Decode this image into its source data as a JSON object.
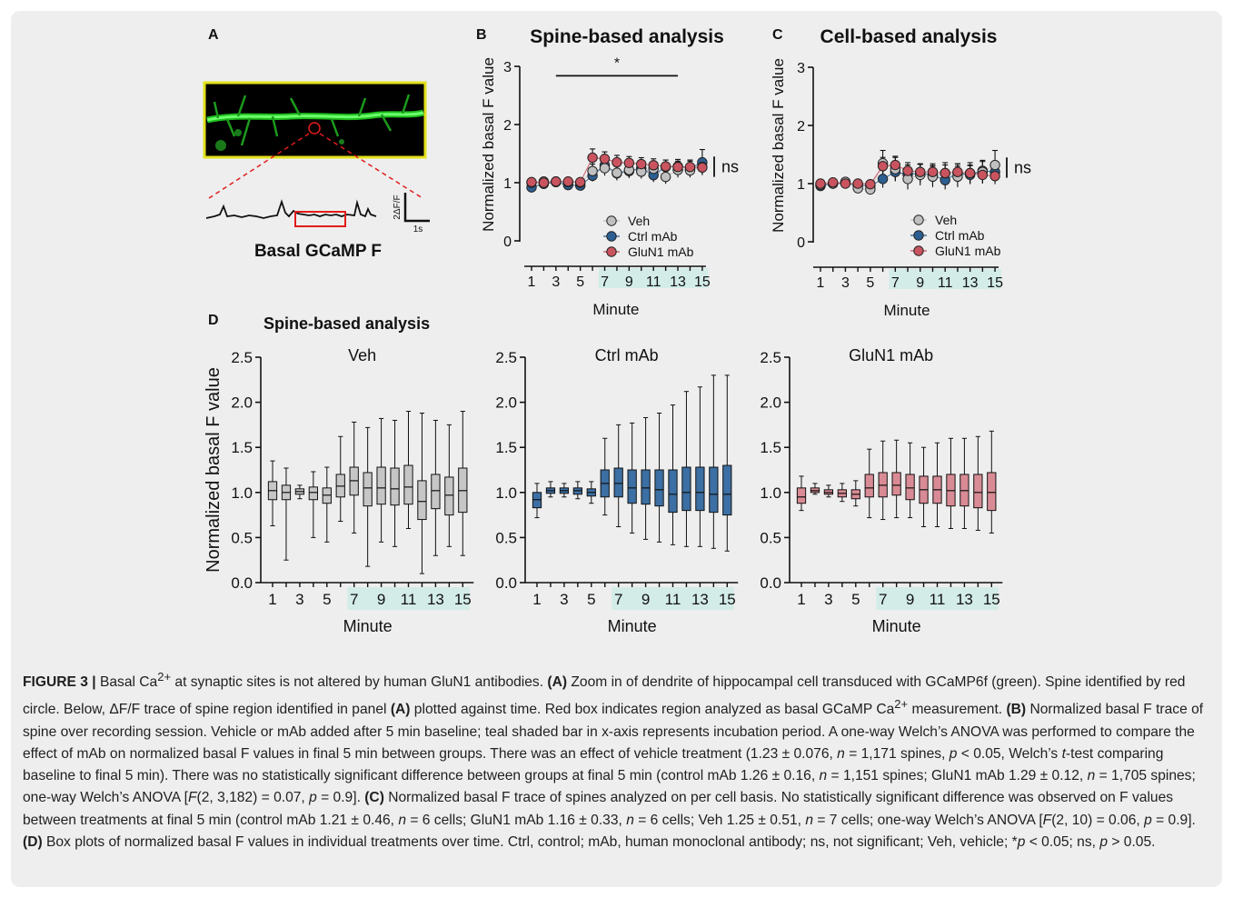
{
  "panel_a": {
    "letter": "A",
    "label": "Basal GCaMP F",
    "scale_y": "2ΔF/F",
    "scale_x": "1s"
  },
  "panel_b": {
    "letter": "B",
    "title": "Spine-based analysis",
    "ylabel": "Normalized basal F value",
    "xlabel": "Minute",
    "sig_star": "*",
    "ns": "ns",
    "legend": [
      "Veh",
      "Ctrl mAb",
      "GluN1 mAb"
    ]
  },
  "panel_c": {
    "letter": "C",
    "title": "Cell-based analysis",
    "ylabel": "Normalized basal F value",
    "xlabel": "Minute",
    "ns": "ns",
    "legend": [
      "Veh",
      "Ctrl mAb",
      "GluN1 mAb"
    ]
  },
  "panel_d": {
    "letter": "D",
    "title": "Spine-based analysis",
    "ylabel": "Normalized basal F value",
    "xlabel": "Minute",
    "subtitles": [
      "Veh",
      "Ctrl mAb",
      "GluN1 mAb"
    ]
  },
  "colors": {
    "veh": "#c0c0c0",
    "ctrl": "#2c5f91",
    "glun1": "#c9545f",
    "veh_box": "#c6c6c6",
    "ctrl_box": "#3c6fa3",
    "glun1_box": "#d98b95",
    "teal": "#d3ece8"
  },
  "chart_data": [
    {
      "type": "line",
      "panel": "B",
      "title": "Spine-based analysis",
      "xlabel": "Minute",
      "ylabel": "Normalized basal F value",
      "x": [
        1,
        2,
        3,
        4,
        5,
        6,
        7,
        8,
        9,
        10,
        11,
        12,
        13,
        14,
        15
      ],
      "xticks": [
        1,
        3,
        5,
        7,
        9,
        11,
        13,
        15
      ],
      "yticks": [
        0,
        1,
        2,
        3
      ],
      "ylim": [
        0,
        3
      ],
      "shaded_x": [
        6.5,
        15.5
      ],
      "series": [
        {
          "name": "Veh",
          "values": [
            1.0,
            1.02,
            1.02,
            1.01,
            1.0,
            1.2,
            1.25,
            1.17,
            1.22,
            1.19,
            1.24,
            1.1,
            1.22,
            1.21,
            1.27
          ],
          "err": [
            0.04,
            0.04,
            0.04,
            0.04,
            0.04,
            0.12,
            0.13,
            0.12,
            0.13,
            0.12,
            0.13,
            0.12,
            0.13,
            0.12,
            0.13
          ]
        },
        {
          "name": "Ctrl mAb",
          "values": [
            0.92,
            0.98,
            1.01,
            0.96,
            0.95,
            1.12,
            1.3,
            1.16,
            1.2,
            1.25,
            1.13,
            1.27,
            1.28,
            1.25,
            1.35
          ],
          "err": [
            0.04,
            0.04,
            0.04,
            0.04,
            0.04,
            0.1,
            0.12,
            0.12,
            0.12,
            0.12,
            0.12,
            0.12,
            0.12,
            0.14,
            0.22
          ]
        },
        {
          "name": "GluN1 mAb",
          "values": [
            1.01,
            1.0,
            1.02,
            1.02,
            1.01,
            1.43,
            1.41,
            1.35,
            1.34,
            1.32,
            1.3,
            1.28,
            1.27,
            1.27,
            1.26
          ],
          "err": [
            0.04,
            0.04,
            0.04,
            0.04,
            0.04,
            0.15,
            0.12,
            0.12,
            0.11,
            0.11,
            0.11,
            0.11,
            0.1,
            0.1,
            0.1
          ]
        }
      ],
      "annotation": {
        "star": "*",
        "from_x": 3,
        "to_x": 13,
        "y": 2.9
      },
      "ns": "ns"
    },
    {
      "type": "line",
      "panel": "C",
      "title": "Cell-based analysis",
      "xlabel": "Minute",
      "ylabel": "Normalized basal F value",
      "x": [
        1,
        2,
        3,
        4,
        5,
        6,
        7,
        8,
        9,
        10,
        11,
        12,
        13,
        14,
        15
      ],
      "xticks": [
        1,
        3,
        5,
        7,
        9,
        11,
        13,
        15
      ],
      "yticks": [
        0,
        1,
        2,
        3
      ],
      "ylim": [
        0,
        3
      ],
      "shaded_x": [
        6.5,
        15.5
      ],
      "series": [
        {
          "name": "Veh",
          "values": [
            0.98,
            1.0,
            1.03,
            0.92,
            0.9,
            1.35,
            1.25,
            1.08,
            1.15,
            1.12,
            1.18,
            1.12,
            1.18,
            1.2,
            1.32
          ],
          "err": [
            0.05,
            0.05,
            0.05,
            0.06,
            0.06,
            0.22,
            0.2,
            0.18,
            0.18,
            0.18,
            0.18,
            0.18,
            0.18,
            0.2,
            0.25
          ]
        },
        {
          "name": "Ctrl mAb",
          "values": [
            0.96,
            1.0,
            1.01,
            0.97,
            0.96,
            1.08,
            1.2,
            1.16,
            1.18,
            1.15,
            1.06,
            1.18,
            1.15,
            1.22,
            1.2
          ],
          "err": [
            0.05,
            0.05,
            0.05,
            0.05,
            0.05,
            0.15,
            0.16,
            0.16,
            0.16,
            0.16,
            0.16,
            0.16,
            0.16,
            0.16,
            0.16
          ]
        },
        {
          "name": "GluN1 mAb",
          "values": [
            1.0,
            1.02,
            1.0,
            1.0,
            0.99,
            1.3,
            1.32,
            1.22,
            1.2,
            1.2,
            1.18,
            1.2,
            1.18,
            1.15,
            1.13
          ],
          "err": [
            0.05,
            0.05,
            0.05,
            0.05,
            0.05,
            0.15,
            0.15,
            0.14,
            0.14,
            0.14,
            0.14,
            0.14,
            0.14,
            0.14,
            0.14
          ]
        }
      ],
      "ns": "ns"
    },
    {
      "type": "box",
      "panel": "D",
      "title": "Veh",
      "xlabel": "Minute",
      "ylabel": "Normalized basal F value",
      "x": [
        1,
        2,
        3,
        4,
        5,
        6,
        7,
        8,
        9,
        10,
        11,
        12,
        13,
        14,
        15
      ],
      "xticks": [
        1,
        3,
        5,
        7,
        9,
        11,
        13,
        15
      ],
      "yticks": [
        0.0,
        0.5,
        1.0,
        1.5,
        2.0,
        2.5
      ],
      "ylim": [
        0,
        2.5
      ],
      "shaded_x": [
        6.5,
        15.5
      ],
      "boxes": [
        [
          0.63,
          0.92,
          1.02,
          1.12,
          1.35
        ],
        [
          0.25,
          0.92,
          1.0,
          1.08,
          1.27
        ],
        [
          0.93,
          0.98,
          1.01,
          1.04,
          1.08
        ],
        [
          0.5,
          0.92,
          1.0,
          1.06,
          1.23
        ],
        [
          0.45,
          0.88,
          0.97,
          1.05,
          1.28
        ],
        [
          0.68,
          0.95,
          1.07,
          1.2,
          1.62
        ],
        [
          0.55,
          0.97,
          1.13,
          1.28,
          1.78
        ],
        [
          0.18,
          0.85,
          1.05,
          1.22,
          1.72
        ],
        [
          0.45,
          0.87,
          1.05,
          1.28,
          1.82
        ],
        [
          0.4,
          0.86,
          1.04,
          1.27,
          1.8
        ],
        [
          0.6,
          0.87,
          1.06,
          1.3,
          1.9
        ],
        [
          0.1,
          0.7,
          0.9,
          1.13,
          1.88
        ],
        [
          0.3,
          0.82,
          1.02,
          1.2,
          1.8
        ],
        [
          0.4,
          0.75,
          0.97,
          1.17,
          1.75
        ],
        [
          0.3,
          0.78,
          1.02,
          1.27,
          1.9
        ]
      ]
    },
    {
      "type": "box",
      "panel": "D",
      "title": "Ctrl mAb",
      "xlabel": "Minute",
      "x": [
        1,
        2,
        3,
        4,
        5,
        6,
        7,
        8,
        9,
        10,
        11,
        12,
        13,
        14,
        15
      ],
      "xticks": [
        1,
        3,
        5,
        7,
        9,
        11,
        13,
        15
      ],
      "yticks": [
        0.0,
        0.5,
        1.0,
        1.5,
        2.0,
        2.5
      ],
      "ylim": [
        0,
        2.5
      ],
      "shaded_x": [
        6.5,
        15.5
      ],
      "boxes": [
        [
          0.72,
          0.83,
          0.92,
          1.0,
          1.1
        ],
        [
          0.95,
          0.99,
          1.02,
          1.05,
          1.12
        ],
        [
          0.95,
          0.99,
          1.02,
          1.05,
          1.1
        ],
        [
          0.93,
          0.98,
          1.02,
          1.05,
          1.12
        ],
        [
          0.88,
          0.96,
          1.0,
          1.04,
          1.12
        ],
        [
          0.75,
          0.95,
          1.1,
          1.25,
          1.6
        ],
        [
          0.62,
          0.95,
          1.1,
          1.27,
          1.75
        ],
        [
          0.55,
          0.88,
          1.05,
          1.25,
          1.77
        ],
        [
          0.48,
          0.87,
          1.05,
          1.25,
          1.83
        ],
        [
          0.45,
          0.85,
          1.03,
          1.25,
          1.88
        ],
        [
          0.42,
          0.78,
          0.98,
          1.25,
          1.97
        ],
        [
          0.4,
          0.8,
          1.0,
          1.28,
          2.12
        ],
        [
          0.4,
          0.8,
          1.0,
          1.28,
          2.17
        ],
        [
          0.38,
          0.78,
          0.98,
          1.28,
          2.3
        ],
        [
          0.35,
          0.75,
          0.98,
          1.3,
          2.3
        ]
      ]
    },
    {
      "type": "box",
      "panel": "D",
      "title": "GluN1 mAb",
      "xlabel": "Minute",
      "x": [
        1,
        2,
        3,
        4,
        5,
        6,
        7,
        8,
        9,
        10,
        11,
        12,
        13,
        14,
        15
      ],
      "xticks": [
        1,
        3,
        5,
        7,
        9,
        11,
        13,
        15
      ],
      "yticks": [
        0.0,
        0.5,
        1.0,
        1.5,
        2.0,
        2.5
      ],
      "ylim": [
        0,
        2.5
      ],
      "shaded_x": [
        6.5,
        15.5
      ],
      "boxes": [
        [
          0.8,
          0.88,
          0.95,
          1.05,
          1.18
        ],
        [
          0.98,
          1.0,
          1.02,
          1.05,
          1.1
        ],
        [
          0.95,
          0.98,
          1.0,
          1.03,
          1.08
        ],
        [
          0.9,
          0.95,
          0.99,
          1.03,
          1.1
        ],
        [
          0.85,
          0.93,
          0.98,
          1.03,
          1.13
        ],
        [
          0.72,
          0.95,
          1.05,
          1.2,
          1.48
        ],
        [
          0.7,
          0.95,
          1.08,
          1.22,
          1.57
        ],
        [
          0.72,
          0.97,
          1.08,
          1.22,
          1.58
        ],
        [
          0.72,
          0.92,
          1.05,
          1.2,
          1.55
        ],
        [
          0.62,
          0.88,
          1.03,
          1.18,
          1.5
        ],
        [
          0.62,
          0.88,
          1.03,
          1.18,
          1.55
        ],
        [
          0.6,
          0.85,
          1.02,
          1.2,
          1.6
        ],
        [
          0.6,
          0.85,
          1.02,
          1.2,
          1.6
        ],
        [
          0.58,
          0.83,
          1.0,
          1.2,
          1.62
        ],
        [
          0.55,
          0.8,
          1.0,
          1.22,
          1.68
        ]
      ]
    }
  ],
  "caption": {
    "fig_label": "FIGURE 3 |",
    "intro": " Basal Ca",
    "intro_sup": "2+",
    "intro_rest": " at synaptic sites is not altered by human GluN1 antibodies. ",
    "a_label": "(A)",
    "a_text": " Zoom in of dendrite of hippocampal cell transduced with GCaMP6f (green). Spine identified by red circle. Below, ΔF/F trace of spine region identified in panel ",
    "a_ref": "(A)",
    "a_text2": " plotted against time. Red box indicates region analyzed as basal GCaMP Ca",
    "a_sup": "2+",
    "a_text3": " measurement. ",
    "b_label": "(B)",
    "b_text": " Normalized basal F trace of spine over recording session. Vehicle or mAb added after 5 min baseline; teal shaded bar in x-axis represents incubation period. A one-way Welch’s ANOVA was performed to compare the effect of mAb on normalized basal F values in final 5 min between groups. There was an effect of vehicle treatment (1.23 ± 0.076, ",
    "b_n1": "n",
    "b_text2": " = 1,171 spines, ",
    "b_p1": "p",
    "b_text3": " < 0.05, Welch’s ",
    "b_t": "t",
    "b_text4": "-test comparing baseline to final 5 min). There was no statistically significant difference between groups at final 5 min (control mAb 1.26 ± 0.16, ",
    "b_n2": "n",
    "b_text5": " = 1,151 spines; GluN1 mAb 1.29 ± 0.12, ",
    "b_n3": "n",
    "b_text6": " = 1,705 spines; one-way Welch’s ANOVA [",
    "b_F": "F",
    "b_text7": "(2, 3,182) = 0.07, ",
    "b_p2": "p",
    "b_text8": " = 0.9]. ",
    "c_label": "(C)",
    "c_text": " Normalized basal F trace of spines analyzed on per cell basis. No statistically significant difference was observed on F values between treatments at final 5 min (control mAb 1.21 ± 0.46, ",
    "c_n1": "n",
    "c_text2": " = 6 cells; GluN1 mAb 1.16 ± 0.33, ",
    "c_n2": "n",
    "c_text3": " = 6 cells; Veh 1.25 ± 0.51, ",
    "c_n3": "n",
    "c_text4": " = 7 cells; one-way Welch’s ANOVA [",
    "c_F": "F",
    "c_text5": "(2, 10) = 0.06, ",
    "c_p": "p",
    "c_text6": " = 0.9]. ",
    "d_label": "(D)",
    "d_text": " Box plots of normalized basal F values in individual treatments over time. Ctrl, control; mAb, human monoclonal antibody; ns, not significant; Veh, vehicle; *",
    "d_p1": "p",
    "d_text2": " < 0.05; ns, ",
    "d_p2": "p",
    "d_text3": " > 0.05."
  }
}
